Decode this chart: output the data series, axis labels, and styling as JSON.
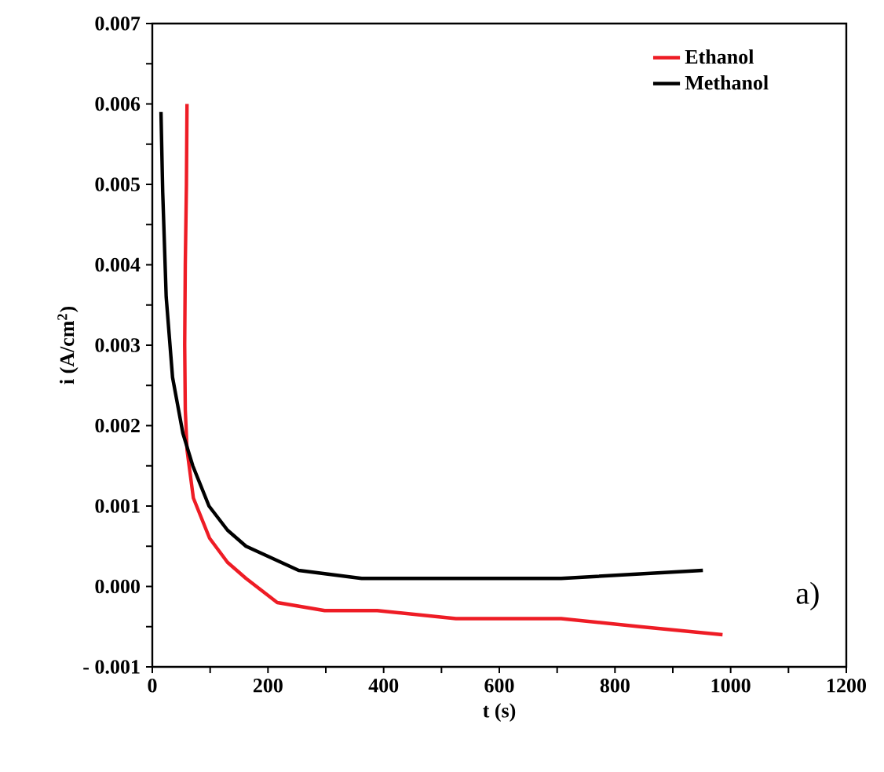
{
  "chart_data": {
    "type": "line",
    "xlabel": "t (s)",
    "ylabel": "i (A/cm$^{2}$)",
    "xlim": [
      0,
      1200
    ],
    "ylim": [
      -0.001,
      0.007
    ],
    "xticks": [
      0,
      {
        "value": 100,
        "label": null
      },
      200,
      {
        "value": 300,
        "label": null
      },
      400,
      {
        "value": 500,
        "label": null
      },
      600,
      {
        "value": 700,
        "label": null
      },
      800,
      {
        "value": 900,
        "label": null
      },
      1000,
      {
        "value": 1100,
        "label": null
      },
      1200
    ],
    "yticks": [
      {
        "value": -0.001,
        "label": "- 0.001"
      },
      {
        "value": -0.0005,
        "label": null
      },
      {
        "value": 0,
        "label": "0.000"
      },
      {
        "value": 0.0005,
        "label": null
      },
      {
        "value": 0.001,
        "label": "0.001"
      },
      {
        "value": 0.0015,
        "label": null
      },
      {
        "value": 0.002,
        "label": "0.002"
      },
      {
        "value": 0.0025,
        "label": null
      },
      {
        "value": 0.003,
        "label": "0.003"
      },
      {
        "value": 0.0035,
        "label": null
      },
      {
        "value": 0.004,
        "label": "0.004"
      },
      {
        "value": 0.0045,
        "label": null
      },
      {
        "value": 0.005,
        "label": "0.005"
      },
      {
        "value": 0.0055,
        "label": null
      },
      {
        "value": 0.006,
        "label": "0.006"
      },
      {
        "value": 0.0065,
        "label": null
      },
      {
        "value": 0.007,
        "label": "0.007"
      }
    ],
    "legend": "top right",
    "line_style": "solid",
    "annotations": [
      "a)"
    ],
    "series": [
      {
        "name": "Ethanol",
        "color": "#ee1c25",
        "x": [
          60,
          59,
          57,
          56,
          57,
          60,
          71,
          99,
          130,
          162,
          216,
          298,
          389,
          525,
          707,
          843,
          986
        ],
        "values": [
          0.006,
          0.005,
          0.004,
          0.003,
          0.0022,
          0.0017,
          0.0011,
          0.0006,
          0.0003,
          0.0001,
          -0.0002,
          -0.0003,
          -0.0003,
          -0.0004,
          -0.0004,
          -0.0005,
          -0.0006
        ]
      },
      {
        "name": "Methanol",
        "color": "#000000",
        "x": [
          15,
          18,
          24,
          35,
          53,
          70,
          98,
          130,
          162,
          253,
          362,
          525,
          707,
          952
        ],
        "values": [
          0.0059,
          0.0049,
          0.0036,
          0.0026,
          0.0019,
          0.0015,
          0.001,
          0.0007,
          0.0005,
          0.0002,
          0.0001,
          0.0001,
          0.0001,
          0.0002
        ]
      }
    ]
  }
}
